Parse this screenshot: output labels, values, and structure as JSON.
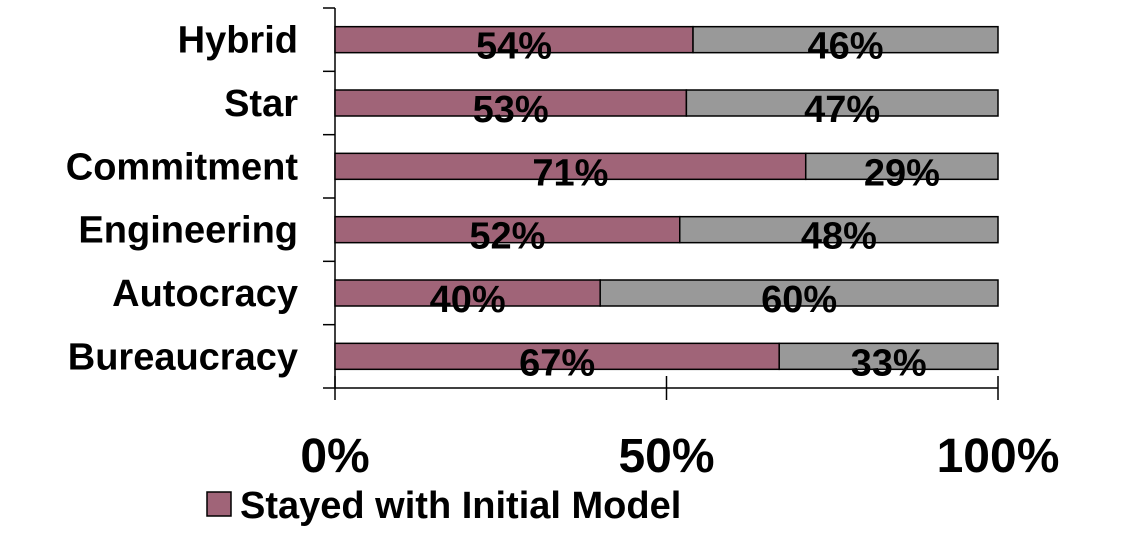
{
  "chart_data": {
    "type": "bar",
    "orientation": "horizontal",
    "stacked": true,
    "categories": [
      "Bureaucracy",
      "Autocracy",
      "Engineering",
      "Commitment",
      "Star",
      "Hybrid"
    ],
    "series": [
      {
        "name": "Stayed with Initial Model",
        "color": "#a06478",
        "values": [
          67,
          40,
          52,
          71,
          53,
          54
        ],
        "labels": [
          "67%",
          "40%",
          "52%",
          "71%",
          "53%",
          "54%"
        ]
      },
      {
        "color": "#999999",
        "values": [
          33,
          60,
          48,
          29,
          47,
          46
        ],
        "labels": [
          "33%",
          "60%",
          "48%",
          "29%",
          "47%",
          "46%"
        ]
      }
    ],
    "xlim": [
      0,
      100
    ],
    "xticks": [
      0,
      50,
      100
    ],
    "xtick_labels": [
      "0%",
      "50%",
      "100%"
    ],
    "legend": {
      "position": "bottom",
      "entries": [
        "Stayed with Initial Model"
      ]
    },
    "grid": false
  }
}
